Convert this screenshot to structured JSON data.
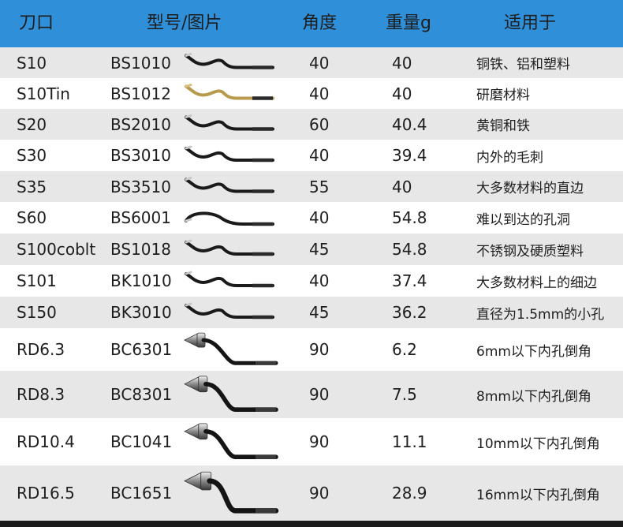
{
  "header": {
    "edge": "刀口",
    "model": "型号/图片",
    "angle": "角度",
    "weight": "重量g",
    "use": "适用于"
  },
  "rows": [
    {
      "edge": "S10",
      "model": "BS1010",
      "angle": "40",
      "weight": "40",
      "use": "铜铁、铝和塑料",
      "icon": "silver-deburring-blade-icon"
    },
    {
      "edge": "S10Tin",
      "model": "BS1012",
      "angle": "40",
      "weight": "40",
      "use": "研磨材料",
      "icon": "gold-deburring-blade-icon"
    },
    {
      "edge": "S20",
      "model": "BS2010",
      "angle": "60",
      "weight": "40.4",
      "use": "黄铜和铁",
      "icon": "silver-deburring-blade-icon"
    },
    {
      "edge": "S30",
      "model": "BS3010",
      "angle": "40",
      "weight": "39.4",
      "use": "内外的毛刺",
      "icon": "silver-deburring-blade-icon"
    },
    {
      "edge": "S35",
      "model": "BS3510",
      "angle": "55",
      "weight": "40",
      "use": "大多数材料的直边",
      "icon": "silver-deburring-blade-icon"
    },
    {
      "edge": "S60",
      "model": "BS6001",
      "angle": "40",
      "weight": "54.8",
      "use": "难以到达的孔洞",
      "icon": "long-deburring-blade-icon"
    },
    {
      "edge": "S100coblt",
      "model": "BS1018",
      "angle": "45",
      "weight": "54.8",
      "use": "不锈钢及硬质塑料",
      "icon": "silver-deburring-blade-icon"
    },
    {
      "edge": "S101",
      "model": "BK1010",
      "angle": "40",
      "weight": "37.4",
      "use": "大多数材料上的细边",
      "icon": "black-deburring-blade-icon"
    },
    {
      "edge": "S150",
      "model": "BK3010",
      "angle": "45",
      "weight": "36.2",
      "use": "直径为1.5mm的小孔",
      "icon": "silver-deburring-blade-icon"
    },
    {
      "edge": "RD6.3",
      "model": "BC6301",
      "angle": "90",
      "weight": "6.2",
      "use": "6mm以下内孔倒角",
      "icon": "countersink-blade-icon"
    },
    {
      "edge": "RD8.3",
      "model": "BC8301",
      "angle": "90",
      "weight": "7.5",
      "use": "8mm以下内孔倒角",
      "icon": "countersink-blade-icon"
    },
    {
      "edge": "RD10.4",
      "model": "BC1041",
      "angle": "90",
      "weight": "11.1",
      "use": "10mm以下内孔倒角",
      "icon": "countersink-blade-icon"
    },
    {
      "edge": "RD16.5",
      "model": "BC1651",
      "angle": "90",
      "weight": "28.9",
      "use": "16mm以下内孔倒角",
      "icon": "countersink-blade-icon"
    }
  ]
}
